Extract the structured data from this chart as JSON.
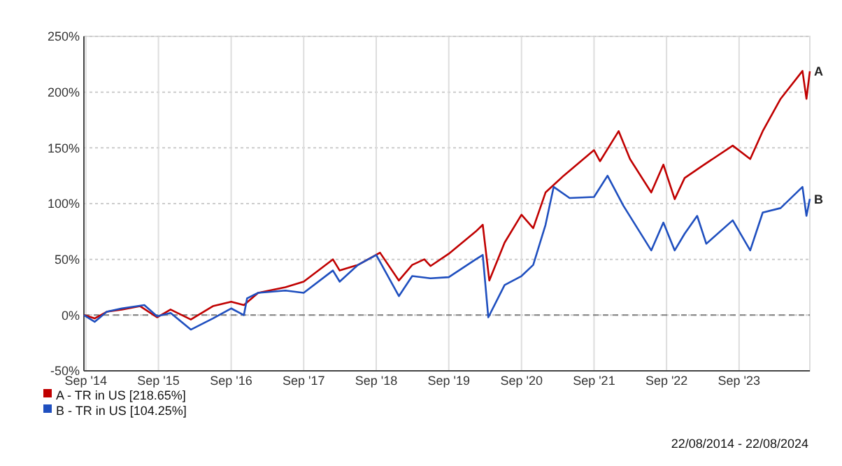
{
  "chart_data": {
    "type": "line",
    "x": [
      "2014-08-22",
      "2014-10-15",
      "2014-12-15",
      "2015-03-01",
      "2015-06-01",
      "2015-08-25",
      "2015-11-01",
      "2016-02-11",
      "2016-06-01",
      "2016-09-01",
      "2016-11-04",
      "2017-01-15",
      "2017-06-01",
      "2017-09-01",
      "2018-01-26",
      "2018-03-01",
      "2018-06-01",
      "2018-09-20",
      "2018-12-24",
      "2019-03-01",
      "2019-05-01",
      "2019-06-01",
      "2019-09-01",
      "2020-01-15",
      "2020-02-19",
      "2020-03-23",
      "2020-06-08",
      "2020-09-01",
      "2020-10-30",
      "2020-12-31",
      "2021-04-01",
      "2021-09-01",
      "2021-10-01",
      "2022-01-03",
      "2022-03-01",
      "2022-06-16",
      "2022-08-16",
      "2022-10-12",
      "2022-12-01",
      "2023-03-01",
      "2023-07-31",
      "2023-10-27",
      "2023-12-29",
      "2024-03-28",
      "2024-07-16",
      "2024-08-05",
      "2024-08-22"
    ],
    "series": [
      {
        "name": "A - TR in US [218.65%]",
        "color": "#c00000",
        "values": [
          0,
          -3,
          3,
          5,
          8,
          -2,
          5,
          -4,
          8,
          12,
          9,
          20,
          25,
          30,
          50,
          40,
          45,
          56,
          31,
          45,
          50,
          44,
          55,
          75,
          81,
          31,
          65,
          90,
          78,
          110,
          125,
          148,
          138,
          165,
          140,
          110,
          135,
          104,
          123,
          134,
          152,
          140,
          165,
          194,
          219,
          194,
          218.65
        ]
      },
      {
        "name": "B - TR in US [104.25%]",
        "color": "#1f4fbf",
        "x": [
          "2014-08-22",
          "2014-10-15",
          "2014-12-15",
          "2015-03-01",
          "2015-06-22",
          "2015-08-25",
          "2015-11-01",
          "2016-02-11",
          "2016-06-01",
          "2016-09-01",
          "2016-11-04",
          "2016-11-20",
          "2017-01-15",
          "2017-06-01",
          "2017-09-01",
          "2018-01-26",
          "2018-03-01",
          "2018-06-01",
          "2018-09-01",
          "2018-12-24",
          "2019-03-01",
          "2019-06-01",
          "2019-09-01",
          "2020-01-15",
          "2020-02-19",
          "2020-03-18",
          "2020-06-08",
          "2020-09-01",
          "2020-10-30",
          "2020-12-31",
          "2021-02-10",
          "2021-05-01",
          "2021-09-01",
          "2021-11-08",
          "2022-01-27",
          "2022-06-16",
          "2022-08-16",
          "2022-10-12",
          "2022-12-01",
          "2023-02-02",
          "2023-03-20",
          "2023-07-31",
          "2023-10-27",
          "2023-12-29",
          "2024-03-28",
          "2024-07-16",
          "2024-08-05",
          "2024-08-22"
        ],
        "values": [
          0,
          -6,
          3,
          6,
          9,
          -1,
          2,
          -13,
          -3,
          6,
          0,
          15,
          20,
          22,
          20,
          40,
          30,
          45,
          54,
          17,
          35,
          33,
          34,
          50,
          54,
          -2,
          27,
          35,
          45,
          81,
          115,
          105,
          106,
          125,
          98,
          58,
          83,
          58,
          73,
          89,
          64,
          85,
          58,
          92,
          96,
          115,
          89,
          104.25
        ]
      }
    ],
    "xlim": [
      "2014-08-22",
      "2024-08-22"
    ],
    "xticks": [
      {
        "value": "2014-09-01",
        "label": "Sep '14"
      },
      {
        "value": "2015-09-01",
        "label": "Sep '15"
      },
      {
        "value": "2016-09-01",
        "label": "Sep '16"
      },
      {
        "value": "2017-09-01",
        "label": "Sep '17"
      },
      {
        "value": "2018-09-01",
        "label": "Sep '18"
      },
      {
        "value": "2019-09-01",
        "label": "Sep '19"
      },
      {
        "value": "2020-09-01",
        "label": "Sep '20"
      },
      {
        "value": "2021-09-01",
        "label": "Sep '21"
      },
      {
        "value": "2022-09-01",
        "label": "Sep '22"
      },
      {
        "value": "2023-09-01",
        "label": "Sep '23"
      }
    ],
    "ylim": [
      -50,
      250
    ],
    "yticks": [
      {
        "value": -50,
        "label": "-50%"
      },
      {
        "value": 0,
        "label": "0%"
      },
      {
        "value": 50,
        "label": "50%"
      },
      {
        "value": 100,
        "label": "100%"
      },
      {
        "value": 150,
        "label": "150%"
      },
      {
        "value": 200,
        "label": "200%"
      },
      {
        "value": 250,
        "label": "250%"
      }
    ],
    "ref_lines": [
      {
        "axis": "y",
        "value": 0,
        "color": "#808080",
        "line_style": "dashed"
      }
    ],
    "grid": true,
    "legend": "bottom left",
    "line_style": "solid",
    "marker": "none",
    "annotations": [
      {
        "text": "A",
        "x": "2024-08-22",
        "y": 218.65
      },
      {
        "text": "B",
        "x": "2024-08-22",
        "y": 104.25
      },
      "22/08/2014 - 22/08/2024"
    ]
  }
}
